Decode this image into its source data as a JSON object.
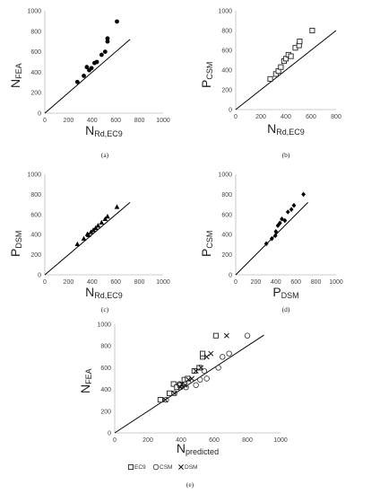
{
  "chart_data": [
    {
      "panel": "(a)",
      "type": "scatter",
      "ylabel_main": "N",
      "ylabel_sub": "FEA",
      "xlabel_main": "N",
      "xlabel_sub": "Rd,EC9",
      "xlim": [
        0,
        1000
      ],
      "ylim": [
        0,
        1000
      ],
      "xticks": [
        "0",
        "200",
        "400",
        "600",
        "800",
        "1000"
      ],
      "yticks": [
        "0",
        "200",
        "400",
        "600",
        "800",
        "1000"
      ],
      "reference_line": [
        [
          0,
          0
        ],
        [
          720,
          720
        ]
      ],
      "series": [
        {
          "marker": "dot",
          "x": [
            275,
            330,
            355,
            375,
            395,
            420,
            440,
            480,
            510,
            530,
            530,
            610
          ],
          "y": [
            305,
            365,
            450,
            420,
            440,
            490,
            500,
            570,
            600,
            700,
            730,
            895
          ]
        }
      ]
    },
    {
      "panel": "(b)",
      "type": "scatter",
      "ylabel_main": "P",
      "ylabel_sub": "CSM",
      "xlabel_main": "N",
      "xlabel_sub": "Rd,EC9",
      "xlim": [
        0,
        800
      ],
      "ylim": [
        0,
        1000
      ],
      "xticks": [
        "0",
        "200",
        "400",
        "600",
        "800"
      ],
      "yticks": [
        "0",
        "200",
        "400",
        "600",
        "800",
        "1000"
      ],
      "reference_line": [
        [
          0,
          0
        ],
        [
          800,
          800
        ]
      ],
      "series": [
        {
          "marker": "square-open",
          "x": [
            275,
            320,
            340,
            360,
            385,
            400,
            420,
            440,
            475,
            505,
            510,
            610
          ],
          "y": [
            310,
            360,
            390,
            430,
            490,
            515,
            555,
            540,
            625,
            650,
            690,
            800
          ]
        }
      ]
    },
    {
      "panel": "(c)",
      "type": "scatter",
      "ylabel_main": "P",
      "ylabel_sub": "DSM",
      "xlabel_main": "N",
      "xlabel_sub": "Rd,EC9",
      "xlim": [
        0,
        1000
      ],
      "ylim": [
        0,
        1000
      ],
      "xticks": [
        "0",
        "200",
        "400",
        "600",
        "800",
        "1000"
      ],
      "yticks": [
        "0",
        "200",
        "400",
        "600",
        "800",
        "1000"
      ],
      "reference_line": [
        [
          0,
          0
        ],
        [
          720,
          720
        ]
      ],
      "series": [
        {
          "marker": "triangle",
          "x": [
            275,
            330,
            360,
            370,
            390,
            410,
            430,
            450,
            480,
            510,
            530,
            610
          ],
          "y": [
            305,
            360,
            405,
            395,
            425,
            445,
            465,
            490,
            520,
            555,
            580,
            675
          ]
        }
      ]
    },
    {
      "panel": "(d)",
      "type": "scatter",
      "ylabel_main": "P",
      "ylabel_sub": "CSM",
      "xlabel_main": "P",
      "xlabel_sub": "DSM",
      "xlim": [
        0,
        1000
      ],
      "ylim": [
        0,
        1000
      ],
      "xticks": [
        "0",
        "200",
        "400",
        "600",
        "800",
        "1000"
      ],
      "yticks": [
        "0",
        "200",
        "400",
        "600",
        "800",
        "1000"
      ],
      "reference_line": [
        [
          0,
          0
        ],
        [
          720,
          720
        ]
      ],
      "series": [
        {
          "marker": "diamond",
          "x": [
            305,
            360,
            395,
            400,
            420,
            440,
            460,
            490,
            520,
            555,
            580,
            675
          ],
          "y": [
            310,
            360,
            390,
            430,
            490,
            515,
            555,
            540,
            625,
            650,
            690,
            800
          ]
        }
      ]
    },
    {
      "panel": "(e)",
      "type": "scatter",
      "ylabel_main": "N",
      "ylabel_sub": "FEA",
      "xlabel_main": "N",
      "xlabel_sub": "predicted",
      "xlim": [
        0,
        1000
      ],
      "ylim": [
        0,
        1000
      ],
      "xticks": [
        "0",
        "200",
        "400",
        "600",
        "800",
        "1000"
      ],
      "yticks": [
        "0",
        "200",
        "400",
        "600",
        "800",
        "1000"
      ],
      "reference_line": [
        [
          0,
          0
        ],
        [
          900,
          900
        ]
      ],
      "legend": "bottom",
      "series": [
        {
          "name": "EC9",
          "marker": "square-open",
          "x": [
            275,
            330,
            355,
            375,
            395,
            420,
            440,
            480,
            510,
            530,
            530,
            610
          ],
          "y": [
            305,
            365,
            450,
            420,
            440,
            490,
            500,
            570,
            600,
            700,
            730,
            895
          ]
        },
        {
          "name": "CSM",
          "marker": "circle-open",
          "x": [
            310,
            360,
            390,
            430,
            490,
            515,
            555,
            540,
            625,
            650,
            690,
            800
          ],
          "y": [
            305,
            365,
            450,
            420,
            440,
            490,
            500,
            570,
            600,
            700,
            730,
            895
          ]
        },
        {
          "name": "DSM",
          "marker": "cross",
          "x": [
            305,
            360,
            405,
            395,
            425,
            445,
            465,
            490,
            520,
            555,
            580,
            675
          ],
          "y": [
            305,
            365,
            450,
            420,
            440,
            490,
            500,
            570,
            600,
            700,
            730,
            895
          ]
        }
      ]
    }
  ]
}
